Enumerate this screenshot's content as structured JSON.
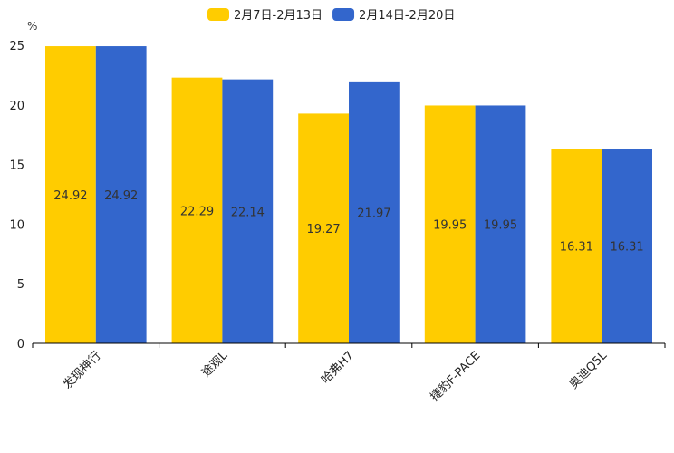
{
  "chart_data": {
    "type": "bar",
    "title": "",
    "xlabel": "",
    "ylabel": "%",
    "ylim": [
      0,
      25
    ],
    "yticks": [
      0,
      5,
      10,
      15,
      20,
      25
    ],
    "grid": false,
    "legend": "top-center",
    "categories": [
      "发现神行",
      "途观L",
      "哈弗H7",
      "捷豹F-PACE",
      "奥迪Q5L"
    ],
    "series": [
      {
        "name": "2月7日-2月13日",
        "color": "#FFCC00",
        "values": [
          24.92,
          22.29,
          19.27,
          19.95,
          16.31
        ]
      },
      {
        "name": "2月14日-2月20日",
        "color": "#3366CC",
        "values": [
          24.92,
          22.14,
          21.97,
          19.95,
          16.31
        ]
      }
    ]
  }
}
